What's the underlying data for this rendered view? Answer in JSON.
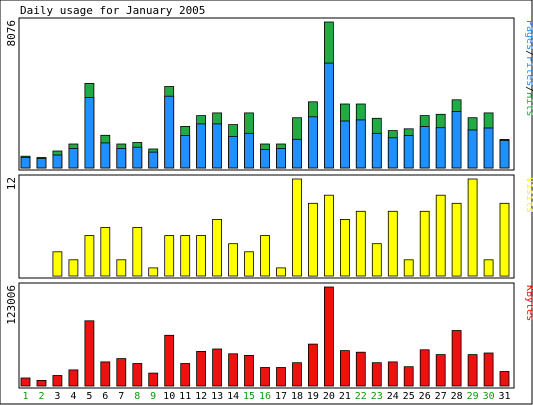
{
  "chart_data": {
    "type": "bar",
    "title": "Daily usage for January 2005",
    "days": [
      "1",
      "2",
      "3",
      "4",
      "5",
      "6",
      "7",
      "8",
      "9",
      "10",
      "11",
      "12",
      "13",
      "14",
      "15",
      "16",
      "17",
      "18",
      "19",
      "20",
      "21",
      "22",
      "23",
      "24",
      "25",
      "26",
      "27",
      "28",
      "29",
      "30",
      "31"
    ],
    "weekend_days": [
      "1",
      "2",
      "8",
      "9",
      "15",
      "16",
      "22",
      "23",
      "29",
      "30"
    ],
    "colors": {
      "hits": "#22aa44",
      "files": "#1e90ff",
      "visits": "#ffff00",
      "kbytes": "#ee1111",
      "weekend_label": "#119911",
      "weekday_label": "#000000",
      "frame": "#000000",
      "panel_bg": "#ffffff"
    },
    "panels": [
      {
        "id": "hits",
        "ylabel_value": "8076",
        "ymax": 8076,
        "legend": [
          {
            "text": "Pages",
            "color": "#1e90ff"
          },
          {
            "text": "/",
            "color": "#000000"
          },
          {
            "text": "Files",
            "color": "#1e90ff"
          },
          {
            "text": "/",
            "color": "#000000"
          },
          {
            "text": "Hits",
            "color": "#22aa44"
          }
        ],
        "series": [
          {
            "name": "Hits",
            "color": "#22aa44",
            "values": [
              650,
              580,
              940,
              1330,
              4680,
              1810,
              1330,
              1410,
              1050,
              4510,
              2300,
              2900,
              3050,
              2400,
              3050,
              1330,
              1330,
              2780,
              3660,
              8076,
              3540,
              3540,
              2750,
              2070,
              2170,
              2900,
              2970,
              3770,
              2780,
              3050,
              1580
            ]
          },
          {
            "name": "Files",
            "color": "#1e90ff",
            "values": [
              580,
              520,
              720,
              1080,
              3900,
              1390,
              1080,
              1150,
              880,
              3970,
              1800,
              2440,
              2440,
              1750,
              1920,
              1030,
              1080,
              1590,
              2830,
              5800,
              2600,
              2660,
              1920,
              1670,
              1800,
              2290,
              2230,
              3120,
              2100,
              2210,
              1520
            ]
          }
        ]
      },
      {
        "id": "visits",
        "ylabel_value": "12",
        "ymax": 12,
        "legend": [
          {
            "text": "Visits",
            "color": "#ffff00"
          }
        ],
        "series": [
          {
            "name": "Visits",
            "color": "#ffff00",
            "values": [
              0,
              0,
              3,
              2,
              5,
              6,
              2,
              6,
              1,
              5,
              5,
              5,
              7,
              4,
              3,
              5,
              1,
              12,
              9,
              10,
              7,
              8,
              4,
              8,
              2,
              8,
              10,
              9,
              12,
              2,
              9
            ]
          }
        ]
      },
      {
        "id": "kbytes",
        "ylabel_value": "123006",
        "ymax": 123006,
        "legend": [
          {
            "text": "KBytes",
            "color": "#ee1111"
          }
        ],
        "series": [
          {
            "name": "KBytes",
            "color": "#ee1111",
            "values": [
              10000,
              7000,
              13000,
              20000,
              81000,
              30000,
              34000,
              28000,
              16000,
              63000,
              28000,
              43000,
              46000,
              40000,
              38000,
              23000,
              23000,
              29000,
              52000,
              123006,
              44000,
              42000,
              29000,
              30000,
              24000,
              45000,
              39000,
              69000,
              39000,
              41000,
              18000
            ]
          }
        ]
      }
    ]
  }
}
